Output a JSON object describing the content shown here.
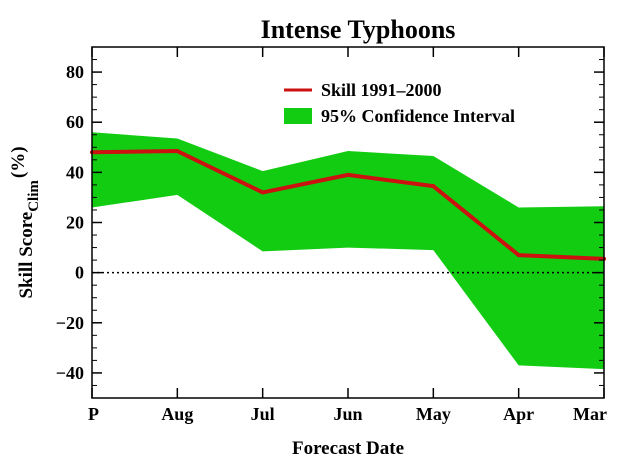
{
  "chart_data": {
    "type": "line",
    "title": "Intense Typhoons",
    "xlabel": "Forecast Date",
    "ylabel": {
      "main": "Skill Score",
      "subscript": "Clim",
      "unit": "(%)"
    },
    "categories": [
      "P",
      "Aug",
      "Jul",
      "Jun",
      "May",
      "Apr",
      "Mar"
    ],
    "ylim": [
      -50,
      90
    ],
    "yticks": [
      "80",
      "60",
      "40",
      "20",
      "0",
      "−20",
      "−40"
    ],
    "zero_line": true,
    "legend_position": "top-right",
    "series": [
      {
        "name": "Skill 1991–2000",
        "color": "#cc1111",
        "values": [
          48,
          48.5,
          32,
          39,
          34.5,
          7,
          5.5
        ]
      }
    ],
    "band": {
      "name": "95% Confidence Interval",
      "color": "#11cc11",
      "lower": [
        26,
        31,
        8.5,
        10,
        9,
        -37,
        -38.5
      ],
      "upper": [
        56,
        53.5,
        40.5,
        48.5,
        46.5,
        26,
        26.5
      ]
    }
  }
}
